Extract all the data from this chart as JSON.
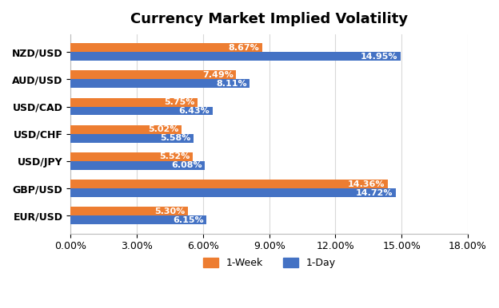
{
  "title": "Currency Market Implied Volatility",
  "categories": [
    "NZD/USD",
    "AUD/USD",
    "USD/CAD",
    "USD/CHF",
    "USD/JPY",
    "GBP/USD",
    "EUR/USD"
  ],
  "week1_values": [
    8.67,
    7.49,
    5.75,
    5.02,
    5.52,
    14.36,
    5.3
  ],
  "day1_values": [
    14.95,
    8.11,
    6.43,
    5.58,
    6.08,
    14.72,
    6.15
  ],
  "week1_color": "#ED7D31",
  "day1_color": "#4472C4",
  "xlim": [
    0,
    18
  ],
  "xticks": [
    0,
    3,
    6,
    9,
    12,
    15,
    18
  ],
  "xtick_labels": [
    "0.00%",
    "3.00%",
    "6.00%",
    "9.00%",
    "12.00%",
    "15.00%",
    "18.00%"
  ],
  "background_color": "#FFFFFF",
  "grid_color": "#D9D9D9",
  "legend_week": "1-Week",
  "legend_day": "1-Day",
  "title_fontsize": 13,
  "axis_fontsize": 9,
  "label_fontsize": 8,
  "bar_height": 0.32
}
